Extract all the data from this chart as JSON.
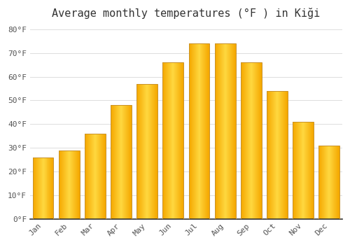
{
  "title": "Average monthly temperatures (°F ) in Kiği",
  "months": [
    "Jan",
    "Feb",
    "Mar",
    "Apr",
    "May",
    "Jun",
    "Jul",
    "Aug",
    "Sep",
    "Oct",
    "Nov",
    "Dec"
  ],
  "values": [
    26,
    29,
    36,
    48,
    57,
    66,
    74,
    74,
    66,
    54,
    41,
    31
  ],
  "bar_color_left": "#F5A800",
  "bar_color_center": "#FFD840",
  "bar_color_right": "#F5A800",
  "bar_edge_color": "#C8922A",
  "background_color": "#ffffff",
  "plot_bg_color": "#ffffff",
  "ylim": [
    0,
    82
  ],
  "yticks": [
    0,
    10,
    20,
    30,
    40,
    50,
    60,
    70,
    80
  ],
  "ylabel_suffix": "°F",
  "grid_color": "#dddddd",
  "title_fontsize": 11,
  "tick_fontsize": 8,
  "font_family": "monospace"
}
